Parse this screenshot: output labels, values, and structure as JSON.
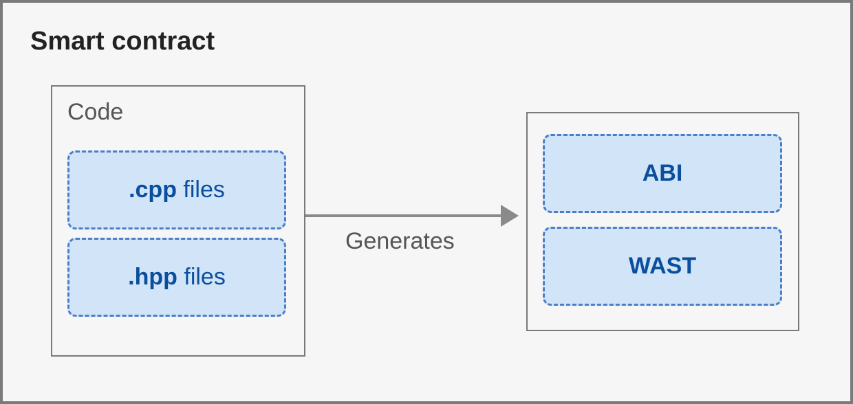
{
  "diagram": {
    "title": "Smart contract",
    "code_container": {
      "label": "Code",
      "border_color": "#7a7a7a",
      "background_color": "#f6f6f6",
      "files": [
        {
          "ext": ".cpp",
          "suffix": " files"
        },
        {
          "ext": ".hpp",
          "suffix": " files"
        }
      ]
    },
    "arrow": {
      "label": "Generates",
      "line_color": "#8a8a8a"
    },
    "output_container": {
      "border_color": "#7a7a7a",
      "background_color": "#f6f6f6",
      "items": [
        {
          "label": "ABI"
        },
        {
          "label": "WAST"
        }
      ]
    },
    "box_style": {
      "border_color": "#4a7ec9",
      "background_color": "#d2e4f7",
      "text_color": "#0a4f9e",
      "border_radius": 12,
      "border_style": "dashed"
    },
    "title_color": "#222222",
    "label_color": "#555555",
    "outer_border_color": "#7a7a7a",
    "outer_background_color": "#f6f6f6"
  }
}
